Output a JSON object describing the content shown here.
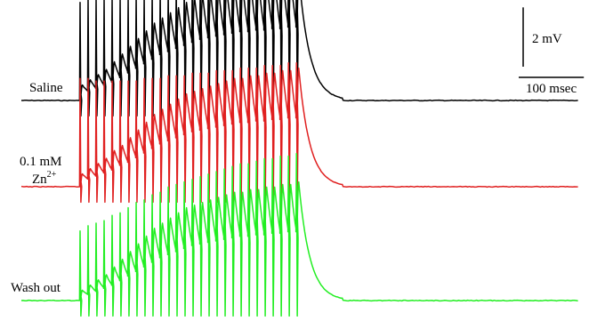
{
  "chart_data": {
    "type": "line",
    "title": "",
    "xlabel": "",
    "ylabel": "",
    "scale_bar": {
      "voltage_label": "2 mV",
      "voltage_value_mV": 2,
      "time_label": "100 msec",
      "time_value_ms": 100
    },
    "stimulus": {
      "pulse_count": 28,
      "pulse_interval_ms": 16,
      "train_start_ms": 0,
      "decay_time_constant_ms": 22,
      "record_end_ms": 525
    },
    "series": [
      {
        "name": "Saline",
        "label_lines": [
          "Saline"
        ],
        "color": "#000000",
        "baseline_mV": 0,
        "epsp_peak_mV": [
          0.6,
          0.8,
          1.0,
          1.2,
          1.5,
          1.8,
          2.1,
          2.4,
          2.7,
          3.0,
          3.2,
          3.4,
          3.6,
          3.8,
          4.0,
          4.1,
          4.2,
          4.3,
          4.4,
          4.5,
          4.5,
          4.6,
          4.6,
          4.7,
          4.7,
          4.8,
          4.8,
          4.9
        ],
        "artifact_peak_mV": [
          3.8,
          4.0,
          4.0,
          4.0,
          4.0,
          4.0,
          4.0,
          4.1,
          4.1,
          4.2,
          4.3,
          4.3,
          4.4,
          4.5,
          4.5,
          4.6,
          4.6,
          4.7,
          4.7,
          4.8,
          4.8,
          4.9,
          4.9,
          5.0,
          5.0,
          5.1,
          5.1,
          5.1
        ]
      },
      {
        "name": "0.1 mM Zn2+",
        "label_lines": [
          "0.1 mM",
          "Zn",
          "2+"
        ],
        "color": "#e02020",
        "baseline_mV": 0,
        "epsp_peak_mV": [
          0.5,
          0.7,
          0.9,
          1.1,
          1.4,
          1.6,
          1.9,
          2.2,
          2.5,
          2.8,
          3.0,
          3.2,
          3.4,
          3.6,
          3.7,
          3.8,
          3.9,
          4.0,
          4.1,
          4.2,
          4.2,
          4.3,
          4.3,
          4.4,
          4.4,
          4.5,
          4.5,
          4.6
        ],
        "artifact_peak_mV": [
          4.2,
          4.2,
          4.1,
          4.1,
          4.1,
          4.1,
          4.1,
          4.1,
          4.2,
          4.2,
          4.2,
          4.3,
          4.3,
          4.3,
          4.4,
          4.4,
          4.4,
          4.5,
          4.5,
          4.5,
          4.6,
          4.6,
          4.6,
          4.7,
          4.7,
          4.7,
          4.8,
          4.8
        ]
      },
      {
        "name": "Wash out",
        "label_lines": [
          "Wash out"
        ],
        "color": "#22ee22",
        "baseline_mV": 0,
        "epsp_peak_mV": [
          0.4,
          0.6,
          0.8,
          1.0,
          1.3,
          1.6,
          1.9,
          2.2,
          2.5,
          2.8,
          3.0,
          3.2,
          3.4,
          3.6,
          3.7,
          3.8,
          3.9,
          4.0,
          4.1,
          4.2,
          4.2,
          4.3,
          4.3,
          4.4,
          4.4,
          4.5,
          4.5,
          4.6
        ],
        "artifact_peak_mV": [
          2.7,
          2.9,
          3.0,
          3.1,
          3.3,
          3.4,
          3.6,
          3.8,
          3.9,
          4.1,
          4.2,
          4.4,
          4.5,
          4.6,
          4.7,
          4.8,
          4.9,
          5.0,
          5.1,
          5.2,
          5.3,
          5.3,
          5.4,
          5.5,
          5.5,
          5.6,
          5.6,
          5.7
        ]
      }
    ]
  }
}
